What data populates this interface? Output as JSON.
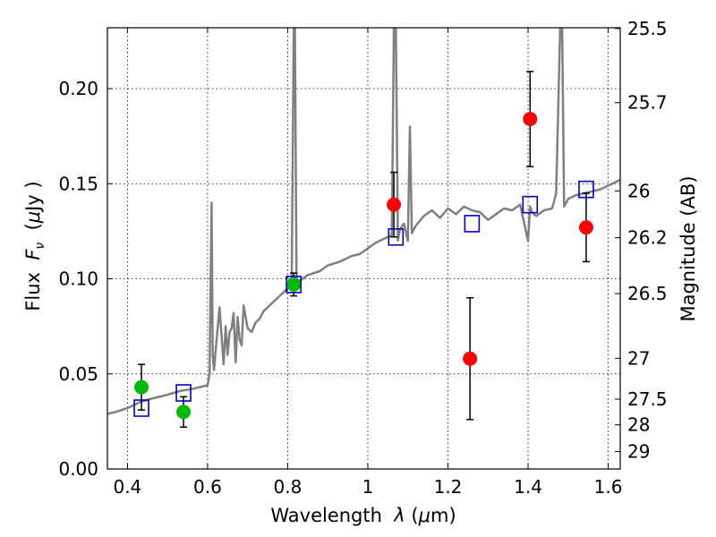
{
  "chart_data": {
    "type": "scatter",
    "title": "",
    "xlabel_parts": [
      "Wavelength  ",
      "λ",
      " (",
      "μ",
      "m)"
    ],
    "ylabel_parts": [
      "Flux  ",
      "F",
      "ν",
      "  (",
      "μ",
      "Jy )"
    ],
    "y2label": "Magnitude (AB)",
    "xlim": [
      0.35,
      1.63
    ],
    "ylim": [
      0.0,
      0.232
    ],
    "xticks": [
      0.4,
      0.6,
      0.8,
      1.0,
      1.2,
      1.4,
      1.6
    ],
    "xtick_labels": [
      "0.4",
      "0.6",
      "0.8",
      "1",
      "1.2",
      "1.4",
      "1.6"
    ],
    "yticks": [
      0.0,
      0.05,
      0.1,
      0.15,
      0.2
    ],
    "ytick_labels": [
      "0.00",
      "0.05",
      "0.10",
      "0.15",
      "0.20"
    ],
    "mag_ticks": [
      {
        "label": "25.5",
        "flux": 0.2316
      },
      {
        "label": "25.7",
        "flux": 0.1926
      },
      {
        "label": "26",
        "flux": 0.1462
      },
      {
        "label": "26.2",
        "flux": 0.1216
      },
      {
        "label": "26.5",
        "flux": 0.0922
      },
      {
        "label": "27",
        "flux": 0.0582
      },
      {
        "label": "27.5",
        "flux": 0.0367
      },
      {
        "label": "28",
        "flux": 0.0232
      },
      {
        "label": "29",
        "flux": 0.0092
      }
    ],
    "grid": true,
    "colors": {
      "spectrum": "#808080",
      "model": "#0000cc",
      "green": "#00bb00",
      "red": "#ff0000",
      "errorbar": "#000000"
    },
    "series": [
      {
        "kind": "spectrum",
        "x": [
          0.35,
          0.37,
          0.4,
          0.43,
          0.46,
          0.5,
          0.53,
          0.56,
          0.58,
          0.6,
          0.605,
          0.61,
          0.613,
          0.616,
          0.62,
          0.63,
          0.64,
          0.645,
          0.65,
          0.655,
          0.66,
          0.665,
          0.67,
          0.675,
          0.68,
          0.685,
          0.69,
          0.7,
          0.71,
          0.72,
          0.73,
          0.74,
          0.75,
          0.76,
          0.77,
          0.78,
          0.79,
          0.8,
          0.81,
          0.815,
          0.818,
          0.822,
          0.826,
          0.83,
          0.85,
          0.88,
          0.9,
          0.93,
          0.96,
          0.98,
          1.0,
          1.02,
          1.04,
          1.06,
          1.065,
          1.07,
          1.075,
          1.08,
          1.09,
          1.1,
          1.105,
          1.11,
          1.12,
          1.14,
          1.16,
          1.18,
          1.2,
          1.22,
          1.24,
          1.26,
          1.28,
          1.3,
          1.32,
          1.34,
          1.36,
          1.38,
          1.4,
          1.405,
          1.41,
          1.42,
          1.44,
          1.46,
          1.47,
          1.48,
          1.485,
          1.49,
          1.495,
          1.5,
          1.51,
          1.52,
          1.54,
          1.56,
          1.58,
          1.6,
          1.63
        ],
        "y": [
          0.029,
          0.03,
          0.032,
          0.035,
          0.037,
          0.039,
          0.041,
          0.042,
          0.043,
          0.044,
          0.05,
          0.14,
          0.06,
          0.052,
          0.062,
          0.085,
          0.055,
          0.075,
          0.06,
          0.072,
          0.074,
          0.082,
          0.056,
          0.08,
          0.068,
          0.065,
          0.086,
          0.074,
          0.072,
          0.077,
          0.079,
          0.083,
          0.085,
          0.087,
          0.089,
          0.091,
          0.093,
          0.095,
          0.097,
          0.232,
          0.232,
          0.1,
          0.096,
          0.099,
          0.102,
          0.104,
          0.107,
          0.109,
          0.112,
          0.113,
          0.116,
          0.119,
          0.121,
          0.123,
          0.232,
          0.232,
          0.12,
          0.126,
          0.129,
          0.12,
          0.18,
          0.124,
          0.128,
          0.133,
          0.136,
          0.132,
          0.137,
          0.134,
          0.138,
          0.136,
          0.135,
          0.131,
          0.134,
          0.137,
          0.136,
          0.139,
          0.12,
          0.138,
          0.135,
          0.133,
          0.136,
          0.137,
          0.145,
          0.232,
          0.232,
          0.138,
          0.14,
          0.142,
          0.143,
          0.144,
          0.145,
          0.146,
          0.147,
          0.149,
          0.152
        ]
      },
      {
        "kind": "model-points",
        "x": [
          0.435,
          0.54,
          0.815,
          1.07,
          1.26,
          1.405,
          1.545
        ],
        "y": [
          0.032,
          0.04,
          0.097,
          0.122,
          0.129,
          0.139,
          0.147
        ]
      },
      {
        "kind": "green-measurements",
        "x": [
          0.435,
          0.54,
          0.815
        ],
        "y": [
          0.043,
          0.03,
          0.097
        ],
        "yerr": [
          0.012,
          0.008,
          0.006
        ]
      },
      {
        "kind": "red-measurements",
        "x": [
          1.065,
          1.255,
          1.405,
          1.545
        ],
        "y": [
          0.139,
          0.058,
          0.184,
          0.127
        ],
        "yerr": [
          0.017,
          0.032,
          0.025,
          0.018
        ]
      }
    ]
  }
}
